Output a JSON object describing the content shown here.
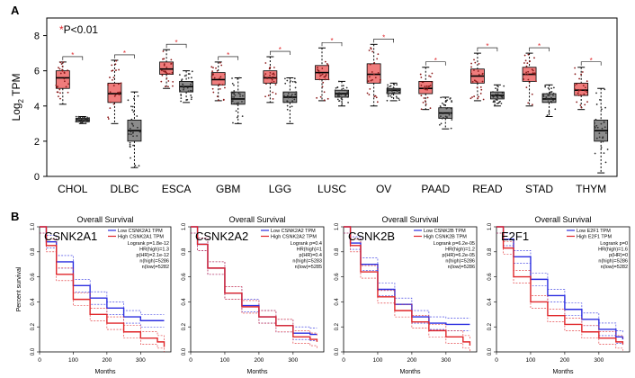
{
  "panel_labels": {
    "a": "A",
    "b": "B"
  },
  "significance_note": {
    "mark": "*",
    "text": "P<0.01"
  },
  "colors": {
    "tumor": "#f07c7c",
    "tumor_dot": "#8b1a1a",
    "normal": "#8c8c8c",
    "normal_dot": "#303030",
    "high_curve": "#e0262a",
    "low_curve": "#2b2ee0",
    "star": "#e0262a"
  },
  "chart_data": [
    {
      "type": "box",
      "title": "",
      "ylabel": "Log2 TPM",
      "ylabel_main": "Log",
      "ylabel_sub": "2",
      "ylabel_rest": " TPM",
      "ylim": [
        0,
        9
      ],
      "yticks": [
        0,
        2,
        4,
        6,
        8
      ],
      "grid": false,
      "categories": [
        "CHOL",
        "DLBC",
        "ESCA",
        "GBM",
        "LGG",
        "LUSC",
        "OV",
        "PAAD",
        "READ",
        "STAD",
        "THYM"
      ],
      "series": [
        {
          "role": "tumor",
          "boxes": [
            {
              "min": 4.1,
              "q1": 5.0,
              "median": 5.6,
              "q3": 6.0,
              "max": 6.5
            },
            {
              "min": 3.0,
              "q1": 4.2,
              "median": 4.7,
              "q3": 5.3,
              "max": 6.6
            },
            {
              "min": 5.0,
              "q1": 5.8,
              "median": 6.1,
              "q3": 6.5,
              "max": 7.2
            },
            {
              "min": 4.3,
              "q1": 5.2,
              "median": 5.5,
              "q3": 5.9,
              "max": 6.5
            },
            {
              "min": 4.2,
              "q1": 5.3,
              "median": 5.6,
              "q3": 6.0,
              "max": 6.8
            },
            {
              "min": 4.3,
              "q1": 5.5,
              "median": 5.9,
              "q3": 6.3,
              "max": 7.3
            },
            {
              "min": 4.0,
              "q1": 5.3,
              "median": 5.8,
              "q3": 6.4,
              "max": 7.5
            },
            {
              "min": 3.8,
              "q1": 4.7,
              "median": 5.0,
              "q3": 5.4,
              "max": 6.2
            },
            {
              "min": 4.3,
              "q1": 5.3,
              "median": 5.7,
              "q3": 6.1,
              "max": 7.0
            },
            {
              "min": 4.0,
              "q1": 5.4,
              "median": 5.8,
              "q3": 6.2,
              "max": 7.0
            },
            {
              "min": 3.8,
              "q1": 4.6,
              "median": 4.9,
              "q3": 5.3,
              "max": 6.2
            }
          ]
        },
        {
          "role": "normal",
          "boxes": [
            {
              "min": 3.0,
              "q1": 3.1,
              "median": 3.2,
              "q3": 3.3,
              "max": 3.4
            },
            {
              "min": 0.5,
              "q1": 2.0,
              "median": 2.6,
              "q3": 3.2,
              "max": 4.8
            },
            {
              "min": 4.2,
              "q1": 4.8,
              "median": 5.1,
              "q3": 5.4,
              "max": 6.0
            },
            {
              "min": 3.0,
              "q1": 4.1,
              "median": 4.4,
              "q3": 4.8,
              "max": 5.6
            },
            {
              "min": 3.0,
              "q1": 4.2,
              "median": 4.5,
              "q3": 4.8,
              "max": 5.6
            },
            {
              "min": 4.0,
              "q1": 4.5,
              "median": 4.7,
              "q3": 4.9,
              "max": 5.4
            },
            {
              "min": 4.3,
              "q1": 4.7,
              "median": 4.9,
              "q3": 5.0,
              "max": 5.3
            },
            {
              "min": 2.7,
              "q1": 3.3,
              "median": 3.6,
              "q3": 3.9,
              "max": 4.5
            },
            {
              "min": 4.0,
              "q1": 4.4,
              "median": 4.6,
              "q3": 4.8,
              "max": 5.2
            },
            {
              "min": 3.4,
              "q1": 4.2,
              "median": 4.4,
              "q3": 4.7,
              "max": 5.2
            },
            {
              "min": 0.2,
              "q1": 2.0,
              "median": 2.6,
              "q3": 3.2,
              "max": 5.0
            }
          ]
        }
      ],
      "significance_markers": [
        "*",
        "*",
        "*",
        "*",
        "*",
        "*",
        "*",
        "*",
        "*",
        "*",
        "*"
      ]
    },
    {
      "type": "line",
      "title": "Overall Survival",
      "gene": "CSNK2A1",
      "xlabel": "Months",
      "ylabel": "Percent survival",
      "xlim": [
        0,
        390
      ],
      "ylim": [
        0,
        1
      ],
      "xticks": [
        0,
        100,
        200,
        300
      ],
      "yticks": [
        0.0,
        0.2,
        0.4,
        0.6,
        0.8,
        1.0
      ],
      "legend": [
        "Low CSNK2A1 TPM",
        "High CSNK2A1 TPM"
      ],
      "stats": [
        "Logrank p=1.8e-12",
        "HR(high)=1.3",
        "p(HR)=2.1e-12",
        "n(high)=5286",
        "n(low)=5282"
      ],
      "series": [
        {
          "name": "Low CSNK2A1 TPM",
          "x": [
            0,
            20,
            50,
            100,
            150,
            200,
            250,
            300,
            350,
            370
          ],
          "y": [
            1.0,
            0.88,
            0.72,
            0.53,
            0.43,
            0.35,
            0.28,
            0.25,
            0.25,
            0.25
          ]
        },
        {
          "name": "High CSNK2A1 TPM",
          "x": [
            0,
            20,
            50,
            100,
            150,
            200,
            250,
            300,
            350,
            370
          ],
          "y": [
            1.0,
            0.85,
            0.62,
            0.42,
            0.3,
            0.23,
            0.16,
            0.11,
            0.08,
            0.04
          ]
        }
      ]
    },
    {
      "type": "line",
      "title": "Overall Survival",
      "gene": "CSNK2A2",
      "xlabel": "Months",
      "ylabel": "",
      "xlim": [
        0,
        390
      ],
      "ylim": [
        0,
        1
      ],
      "xticks": [
        0,
        100,
        200,
        300
      ],
      "yticks": [
        0.0,
        0.2,
        0.4,
        0.6,
        0.8,
        1.0
      ],
      "legend": [
        "Low CSNK2A2 TPM",
        "High CSNK2A2 TPM"
      ],
      "stats": [
        "Logrank p=0.4",
        "HR(high)=1",
        "p(HR)=0.4",
        "n(high)=5283",
        "n(low)=5285"
      ],
      "series": [
        {
          "name": "Low CSNK2A2 TPM",
          "x": [
            0,
            20,
            50,
            100,
            150,
            200,
            250,
            300,
            350,
            370
          ],
          "y": [
            1.0,
            0.86,
            0.67,
            0.47,
            0.37,
            0.28,
            0.21,
            0.15,
            0.14,
            0.14
          ]
        },
        {
          "name": "High CSNK2A2 TPM",
          "x": [
            0,
            20,
            50,
            100,
            150,
            200,
            250,
            300,
            350,
            370
          ],
          "y": [
            1.0,
            0.86,
            0.67,
            0.47,
            0.36,
            0.28,
            0.21,
            0.12,
            0.1,
            0.08
          ]
        }
      ]
    },
    {
      "type": "line",
      "title": "Overall Survival",
      "gene": "CSNK2B",
      "xlabel": "Months",
      "ylabel": "",
      "xlim": [
        0,
        390
      ],
      "ylim": [
        0,
        1
      ],
      "xticks": [
        0,
        100,
        200,
        300
      ],
      "yticks": [
        0.0,
        0.2,
        0.4,
        0.6,
        0.8,
        1.0
      ],
      "legend": [
        "Low CSNK2B TPM",
        "High CSNK2B TPM"
      ],
      "stats": [
        "Logrank p=6.2e-05",
        "HR(high)=1.2",
        "p(HR)=6.2e-05",
        "n(high)=5286",
        "n(low)=5286"
      ],
      "series": [
        {
          "name": "Low CSNK2B TPM",
          "x": [
            0,
            20,
            50,
            100,
            150,
            200,
            250,
            300,
            350,
            370
          ],
          "y": [
            1.0,
            0.87,
            0.7,
            0.5,
            0.38,
            0.28,
            0.23,
            0.22,
            0.22,
            0.22
          ]
        },
        {
          "name": "High CSNK2B TPM",
          "x": [
            0,
            20,
            50,
            100,
            150,
            200,
            250,
            300,
            350,
            370
          ],
          "y": [
            1.0,
            0.85,
            0.64,
            0.44,
            0.33,
            0.24,
            0.17,
            0.12,
            0.08,
            0.05
          ]
        }
      ]
    },
    {
      "type": "line",
      "title": "Overall Survival",
      "gene": "E2F1",
      "xlabel": "Months",
      "ylabel": "",
      "xlim": [
        0,
        390
      ],
      "ylim": [
        0,
        1
      ],
      "xticks": [
        0,
        100,
        200,
        300
      ],
      "yticks": [
        0.0,
        0.2,
        0.4,
        0.6,
        0.8,
        1.0
      ],
      "legend": [
        "Low E2F1 TPM",
        "High E2F1 TPM"
      ],
      "stats": [
        "Logrank p=0",
        "HR(high)=1.6",
        "p(HR)=0",
        "n(high)=5286",
        "n(low)=5282"
      ],
      "series": [
        {
          "name": "Low E2F1 TPM",
          "x": [
            0,
            20,
            50,
            100,
            150,
            200,
            250,
            300,
            350,
            370
          ],
          "y": [
            1.0,
            0.9,
            0.76,
            0.58,
            0.45,
            0.34,
            0.26,
            0.18,
            0.12,
            0.1
          ]
        },
        {
          "name": "High E2F1 TPM",
          "x": [
            0,
            20,
            50,
            100,
            150,
            200,
            250,
            300,
            350,
            370
          ],
          "y": [
            1.0,
            0.83,
            0.6,
            0.4,
            0.29,
            0.22,
            0.16,
            0.11,
            0.08,
            0.06
          ]
        }
      ]
    }
  ]
}
